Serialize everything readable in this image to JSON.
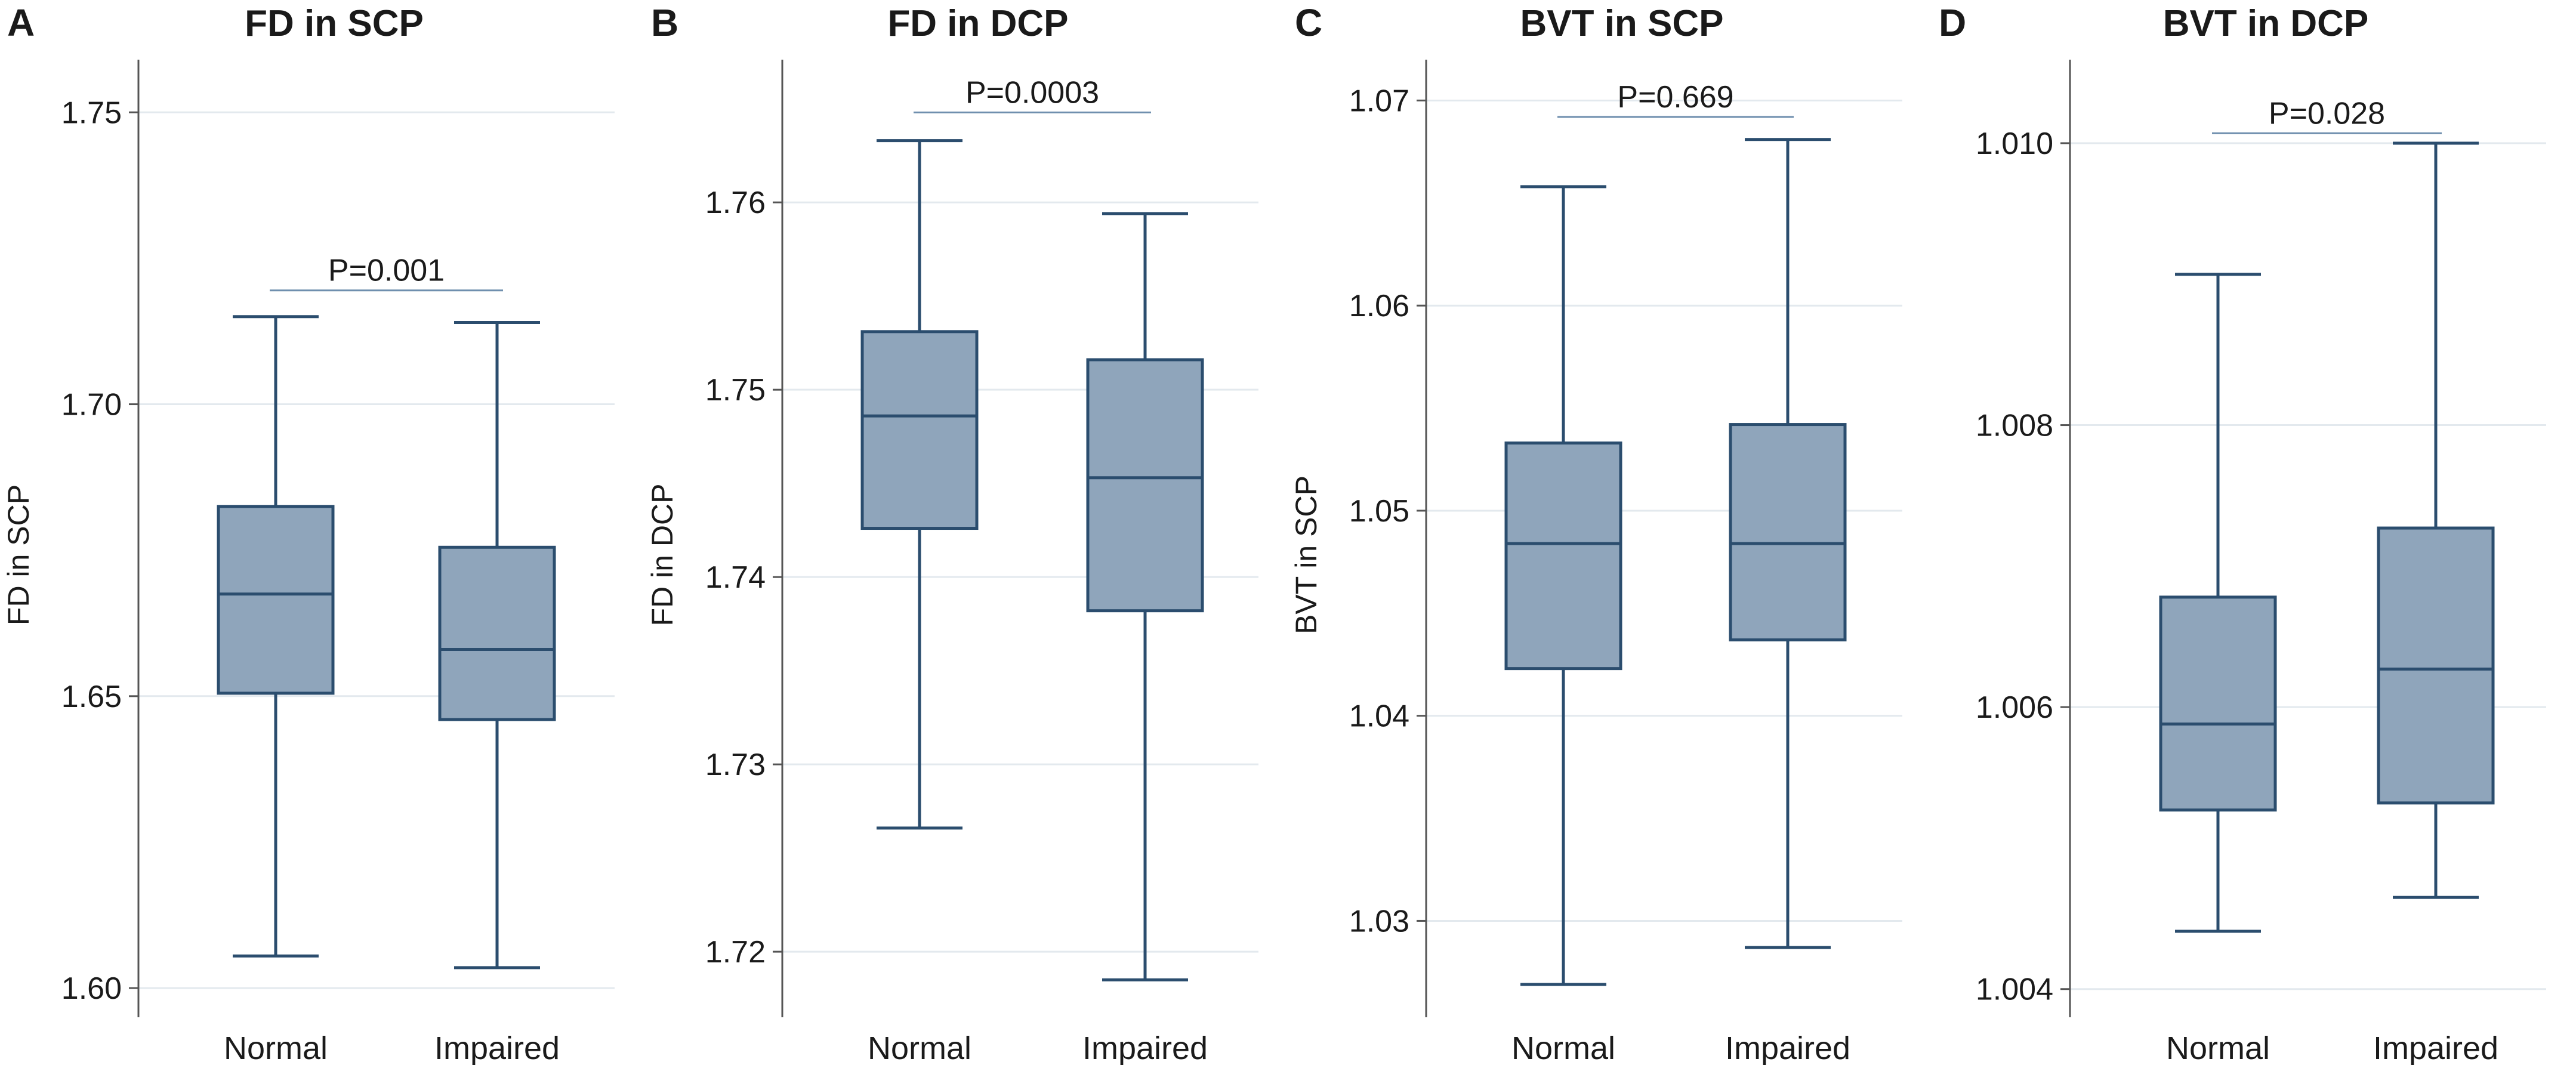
{
  "colors": {
    "box_fill": "#8fa5bb",
    "box_stroke": "#2b4d6e",
    "grid": "#e3e9ee",
    "axis": "#555555",
    "p_line": "#6f8fae"
  },
  "chart_data": [
    {
      "type": "box",
      "panel": "A",
      "title": "FD in SCP",
      "ylabel": "FD in SCP",
      "xlabel": "",
      "categories": [
        "Normal",
        "Impaired"
      ],
      "ylim": [
        1.595,
        1.758
      ],
      "yticks": [
        1.6,
        1.65,
        1.7,
        1.75
      ],
      "ytick_labels": [
        "1.60",
        "1.65",
        "1.70",
        "1.75"
      ],
      "boxes": [
        {
          "name": "Normal",
          "min": 1.6055,
          "q1": 1.6505,
          "median": 1.6675,
          "q3": 1.6825,
          "max": 1.715
        },
        {
          "name": "Impaired",
          "min": 1.6035,
          "q1": 1.646,
          "median": 1.658,
          "q3": 1.6755,
          "max": 1.714
        }
      ],
      "p_value": "P=0.001",
      "p_line_y": 1.7195
    },
    {
      "type": "box",
      "panel": "B",
      "title": "FD in DCP",
      "ylabel": "FD in DCP",
      "xlabel": "",
      "categories": [
        "Normal",
        "Impaired"
      ],
      "ylim": [
        1.7165,
        1.7673
      ],
      "yticks": [
        1.72,
        1.73,
        1.74,
        1.75,
        1.76
      ],
      "ytick_labels": [
        "1.72",
        "1.73",
        "1.74",
        "1.75",
        "1.76"
      ],
      "boxes": [
        {
          "name": "Normal",
          "min": 1.7266,
          "q1": 1.7426,
          "median": 1.7486,
          "q3": 1.7531,
          "max": 1.7633
        },
        {
          "name": "Impaired",
          "min": 1.7185,
          "q1": 1.7382,
          "median": 1.7453,
          "q3": 1.7516,
          "max": 1.7594
        }
      ],
      "p_value": "P=0.0003",
      "p_line_y": 1.7648
    },
    {
      "type": "box",
      "panel": "C",
      "title": "BVT in SCP",
      "ylabel": "BVT in SCP",
      "xlabel": "",
      "categories": [
        "Normal",
        "Impaired"
      ],
      "ylim": [
        1.0253,
        1.0717
      ],
      "yticks": [
        1.03,
        1.04,
        1.05,
        1.06,
        1.07
      ],
      "ytick_labels": [
        "1.03",
        "1.04",
        "1.05",
        "1.06",
        "1.07"
      ],
      "boxes": [
        {
          "name": "Normal",
          "min": 1.0269,
          "q1": 1.0423,
          "median": 1.0484,
          "q3": 1.0533,
          "max": 1.0658
        },
        {
          "name": "Impaired",
          "min": 1.0287,
          "q1": 1.0437,
          "median": 1.0484,
          "q3": 1.0542,
          "max": 1.0681
        }
      ],
      "p_value": "P=0.669",
      "p_line_y": 1.0692
    },
    {
      "type": "box",
      "panel": "D",
      "title": "BVT in DCP",
      "ylabel": "",
      "xlabel": "",
      "categories": [
        "Normal",
        "Impaired"
      ],
      "ylim": [
        1.0038,
        1.01055
      ],
      "yticks": [
        1.004,
        1.006,
        1.008,
        1.01
      ],
      "ytick_labels": [
        "1.004",
        "1.006",
        "1.008",
        "1.010"
      ],
      "boxes": [
        {
          "name": "Normal",
          "min": 1.00441,
          "q1": 1.00527,
          "median": 1.00588,
          "q3": 1.00678,
          "max": 1.00907
        },
        {
          "name": "Impaired",
          "min": 1.00465,
          "q1": 1.00532,
          "median": 1.00627,
          "q3": 1.00727,
          "max": 1.01
        }
      ],
      "p_value": "P=0.028",
      "p_line_y": 1.01007
    }
  ]
}
